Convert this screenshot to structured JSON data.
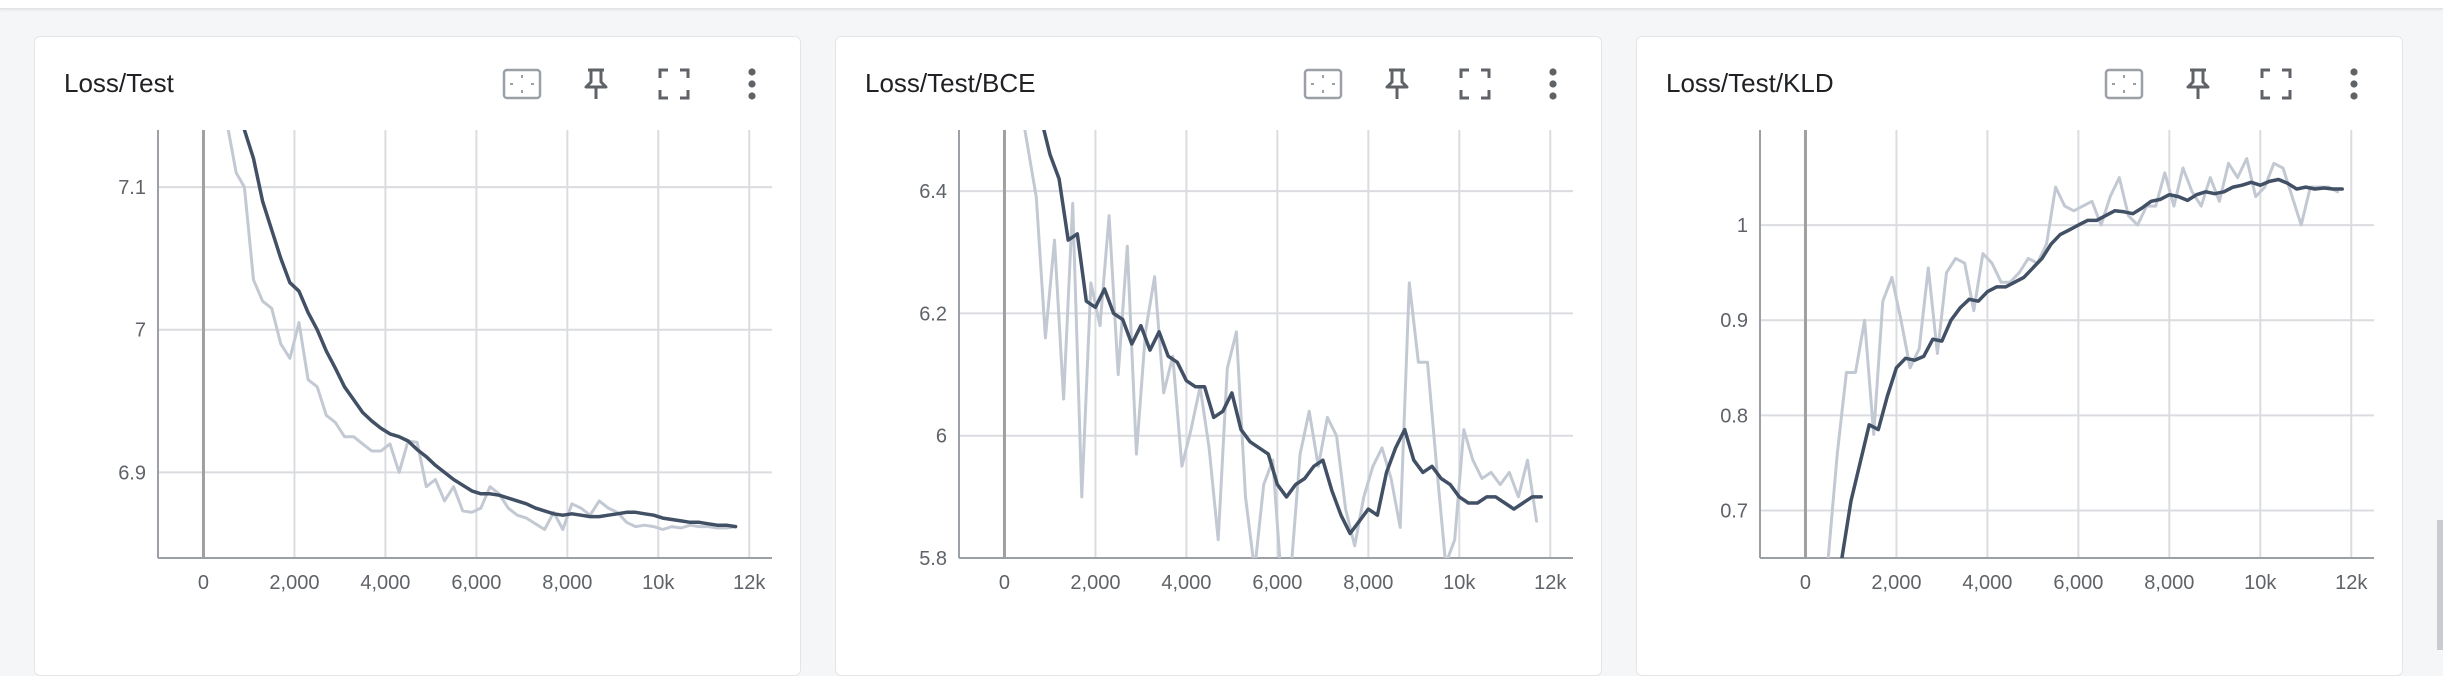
{
  "colors": {
    "smoothed": "#425066",
    "raw": "#c3c9d3",
    "grid": "#dadce0",
    "axis": "#9aa0a6",
    "zero_line": "#a0a0a0"
  },
  "toolbar_icons": [
    "fit-domain-icon",
    "pin-icon",
    "fullscreen-icon",
    "more-vert-icon"
  ],
  "chart_data": [
    {
      "type": "line",
      "title": "Loss/Test",
      "xlim": [
        -1000,
        12500
      ],
      "ylim": [
        6.84,
        7.14
      ],
      "x_ticks": [
        0,
        2000,
        4000,
        6000,
        8000,
        10000,
        12000
      ],
      "x_tick_labels": [
        "0",
        "2,000",
        "4,000",
        "6,000",
        "8,000",
        "10k",
        "12k"
      ],
      "y_ticks": [
        6.9,
        7.0,
        7.1
      ],
      "y_tick_labels": [
        "6.9",
        "7",
        "7.1"
      ],
      "grid": true,
      "series": [
        {
          "role": "raw",
          "x": [
            430,
            720,
            900,
            1100,
            1300,
            1500,
            1700,
            1900,
            2100,
            2300,
            2500,
            2700,
            2900,
            3100,
            3300,
            3500,
            3700,
            3900,
            4100,
            4300,
            4500,
            4700,
            4900,
            5100,
            5300,
            5500,
            5700,
            5900,
            6100,
            6300,
            6500,
            6700,
            6900,
            7100,
            7300,
            7500,
            7700,
            7900,
            8100,
            8300,
            8500,
            8700,
            8900,
            9100,
            9300,
            9500,
            9700,
            9900,
            10100,
            10300,
            10500,
            10700,
            10900,
            11100,
            11300,
            11500,
            11700
          ],
          "values": [
            7.16,
            7.11,
            7.1,
            7.035,
            7.02,
            7.015,
            6.99,
            6.98,
            7.005,
            6.965,
            6.96,
            6.94,
            6.935,
            6.925,
            6.925,
            6.92,
            6.915,
            6.915,
            6.92,
            6.9,
            6.922,
            6.921,
            6.89,
            6.895,
            6.88,
            6.89,
            6.873,
            6.872,
            6.875,
            6.89,
            6.885,
            6.875,
            6.87,
            6.868,
            6.864,
            6.86,
            6.872,
            6.86,
            6.878,
            6.875,
            6.87,
            6.88,
            6.875,
            6.872,
            6.865,
            6.862,
            6.863,
            6.862,
            6.86,
            6.862,
            6.861,
            6.863,
            6.862,
            6.862,
            6.861,
            6.861,
            6.862
          ]
        },
        {
          "role": "smoothed",
          "x": [
            800,
            1100,
            1300,
            1500,
            1700,
            1900,
            2100,
            2300,
            2500,
            2700,
            2900,
            3100,
            3300,
            3500,
            3700,
            3900,
            4100,
            4300,
            4500,
            4700,
            4900,
            5100,
            5300,
            5500,
            5700,
            5900,
            6100,
            6300,
            6500,
            6700,
            6900,
            7100,
            7300,
            7500,
            7700,
            7900,
            8100,
            8300,
            8500,
            8700,
            8900,
            9100,
            9300,
            9500,
            9700,
            9900,
            10100,
            10300,
            10500,
            10700,
            10900,
            11100,
            11300,
            11500,
            11700
          ],
          "values": [
            7.15,
            7.12,
            7.09,
            7.07,
            7.05,
            7.033,
            7.027,
            7.012,
            7.0,
            6.985,
            6.973,
            6.96,
            6.951,
            6.942,
            6.936,
            6.931,
            6.927,
            6.925,
            6.922,
            6.916,
            6.911,
            6.905,
            6.9,
            6.895,
            6.891,
            6.887,
            6.885,
            6.885,
            6.884,
            6.882,
            6.88,
            6.878,
            6.875,
            6.873,
            6.871,
            6.87,
            6.871,
            6.87,
            6.869,
            6.869,
            6.87,
            6.871,
            6.872,
            6.872,
            6.871,
            6.87,
            6.868,
            6.867,
            6.866,
            6.865,
            6.865,
            6.864,
            6.863,
            6.863,
            6.862
          ]
        }
      ]
    },
    {
      "type": "line",
      "title": "Loss/Test/BCE",
      "xlim": [
        -1000,
        12500
      ],
      "ylim": [
        5.8,
        6.5
      ],
      "x_ticks": [
        0,
        2000,
        4000,
        6000,
        8000,
        10000,
        12000
      ],
      "x_tick_labels": [
        "0",
        "2,000",
        "4,000",
        "6,000",
        "8,000",
        "10k",
        "12k"
      ],
      "y_ticks": [
        5.8,
        6.0,
        6.2,
        6.4
      ],
      "y_tick_labels": [
        "5.8",
        "6",
        "6.2",
        "6.4"
      ],
      "grid": true,
      "series": [
        {
          "role": "raw",
          "x": [
            450,
            700,
            900,
            1100,
            1300,
            1500,
            1700,
            1900,
            2100,
            2300,
            2500,
            2700,
            2900,
            3100,
            3300,
            3500,
            3700,
            3900,
            4100,
            4300,
            4500,
            4700,
            4900,
            5100,
            5300,
            5500,
            5700,
            5900,
            6100,
            6300,
            6500,
            6700,
            6900,
            7100,
            7300,
            7500,
            7700,
            7900,
            8100,
            8300,
            8500,
            8700,
            8900,
            9100,
            9300,
            9500,
            9700,
            9900,
            10100,
            10300,
            10500,
            10700,
            10900,
            11100,
            11300,
            11500,
            11700
          ],
          "values": [
            6.5,
            6.39,
            6.16,
            6.32,
            6.06,
            6.38,
            5.9,
            6.25,
            6.18,
            6.36,
            6.1,
            6.31,
            5.97,
            6.17,
            6.26,
            6.07,
            6.13,
            5.95,
            6.01,
            6.08,
            5.98,
            5.83,
            6.11,
            6.17,
            5.9,
            5.78,
            5.92,
            5.96,
            5.75,
            5.78,
            5.97,
            6.04,
            5.95,
            6.03,
            6.0,
            5.88,
            5.82,
            5.9,
            5.95,
            5.98,
            5.93,
            5.85,
            6.25,
            6.12,
            6.12,
            5.95,
            5.79,
            5.83,
            6.01,
            5.96,
            5.93,
            5.94,
            5.92,
            5.94,
            5.9,
            5.96,
            5.86
          ]
        },
        {
          "role": "smoothed",
          "x": [
            800,
            1000,
            1200,
            1400,
            1600,
            1800,
            2000,
            2200,
            2400,
            2600,
            2800,
            3000,
            3200,
            3400,
            3600,
            3800,
            4000,
            4200,
            4400,
            4600,
            4800,
            5000,
            5200,
            5400,
            5600,
            5800,
            6000,
            6200,
            6400,
            6600,
            6800,
            7000,
            7200,
            7400,
            7600,
            7800,
            8000,
            8200,
            8400,
            8600,
            8800,
            9000,
            9200,
            9400,
            9600,
            9800,
            10000,
            10200,
            10400,
            10600,
            10800,
            11000,
            11200,
            11400,
            11600,
            11800
          ],
          "values": [
            6.52,
            6.46,
            6.42,
            6.32,
            6.33,
            6.22,
            6.21,
            6.24,
            6.2,
            6.19,
            6.15,
            6.18,
            6.14,
            6.17,
            6.13,
            6.12,
            6.09,
            6.08,
            6.08,
            6.03,
            6.04,
            6.07,
            6.01,
            5.99,
            5.98,
            5.97,
            5.92,
            5.9,
            5.92,
            5.93,
            5.95,
            5.96,
            5.91,
            5.87,
            5.84,
            5.86,
            5.88,
            5.87,
            5.94,
            5.98,
            6.01,
            5.96,
            5.94,
            5.95,
            5.93,
            5.92,
            5.9,
            5.89,
            5.89,
            5.9,
            5.9,
            5.89,
            5.88,
            5.89,
            5.9,
            5.9
          ]
        }
      ]
    },
    {
      "type": "line",
      "title": "Loss/Test/KLD",
      "xlim": [
        -1000,
        12500
      ],
      "ylim": [
        0.65,
        1.1
      ],
      "x_ticks": [
        0,
        2000,
        4000,
        6000,
        8000,
        10000,
        12000
      ],
      "x_tick_labels": [
        "0",
        "2,000",
        "4,000",
        "6,000",
        "8,000",
        "10k",
        "12k"
      ],
      "y_ticks": [
        0.7,
        0.8,
        0.9,
        1.0
      ],
      "y_tick_labels": [
        "0.7",
        "0.8",
        "0.9",
        "1"
      ],
      "grid": true,
      "series": [
        {
          "role": "raw",
          "x": [
            500,
            700,
            900,
            1100,
            1300,
            1500,
            1700,
            1900,
            2100,
            2300,
            2500,
            2700,
            2900,
            3100,
            3300,
            3500,
            3700,
            3900,
            4100,
            4300,
            4500,
            4700,
            4900,
            5100,
            5300,
            5500,
            5700,
            5900,
            6100,
            6300,
            6500,
            6700,
            6900,
            7100,
            7300,
            7500,
            7700,
            7900,
            8100,
            8300,
            8500,
            8700,
            8900,
            9100,
            9300,
            9500,
            9700,
            9900,
            10100,
            10300,
            10500,
            10700,
            10900,
            11100,
            11300,
            11500,
            11700
          ],
          "values": [
            0.65,
            0.76,
            0.845,
            0.845,
            0.9,
            0.78,
            0.92,
            0.945,
            0.9,
            0.85,
            0.87,
            0.955,
            0.865,
            0.95,
            0.965,
            0.96,
            0.91,
            0.97,
            0.96,
            0.94,
            0.94,
            0.95,
            0.965,
            0.96,
            0.98,
            1.04,
            1.02,
            1.015,
            1.02,
            1.025,
            1.0,
            1.03,
            1.05,
            1.01,
            1.0,
            1.02,
            1.02,
            1.055,
            1.02,
            1.06,
            1.035,
            1.02,
            1.05,
            1.025,
            1.065,
            1.05,
            1.07,
            1.03,
            1.04,
            1.065,
            1.06,
            1.03,
            1.0,
            1.04,
            1.04,
            1.04,
            1.035
          ]
        },
        {
          "role": "smoothed",
          "x": [
            800,
            1000,
            1200,
            1400,
            1600,
            1800,
            2000,
            2200,
            2400,
            2600,
            2800,
            3000,
            3200,
            3400,
            3600,
            3800,
            4000,
            4200,
            4400,
            4600,
            4800,
            5000,
            5200,
            5400,
            5600,
            5800,
            6000,
            6200,
            6400,
            6600,
            6800,
            7000,
            7200,
            7400,
            7600,
            7800,
            8000,
            8200,
            8400,
            8600,
            8800,
            9000,
            9200,
            9400,
            9600,
            9800,
            10000,
            10200,
            10400,
            10600,
            10800,
            11000,
            11200,
            11400,
            11600,
            11800
          ],
          "values": [
            0.65,
            0.71,
            0.75,
            0.79,
            0.785,
            0.82,
            0.85,
            0.86,
            0.858,
            0.862,
            0.88,
            0.878,
            0.9,
            0.913,
            0.922,
            0.92,
            0.93,
            0.935,
            0.935,
            0.94,
            0.945,
            0.955,
            0.965,
            0.98,
            0.99,
            0.995,
            1.0,
            1.005,
            1.005,
            1.01,
            1.015,
            1.014,
            1.012,
            1.018,
            1.025,
            1.027,
            1.032,
            1.03,
            1.026,
            1.032,
            1.035,
            1.033,
            1.035,
            1.04,
            1.042,
            1.045,
            1.042,
            1.046,
            1.048,
            1.044,
            1.038,
            1.04,
            1.038,
            1.039,
            1.038,
            1.038
          ]
        }
      ]
    }
  ]
}
